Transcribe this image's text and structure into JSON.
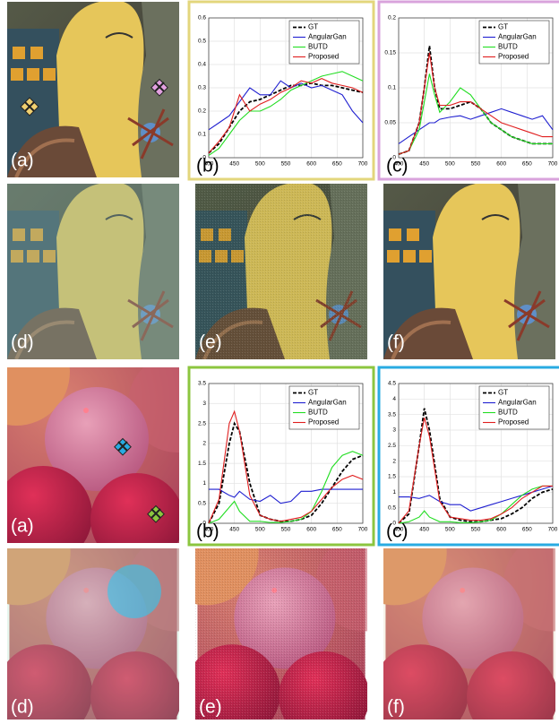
{
  "chart_data": [
    {
      "type": "line",
      "panel_label": "(b)",
      "frame_color": "#e3d67c",
      "grid": true,
      "legend": "upper right",
      "x": [
        400,
        420,
        440,
        460,
        480,
        500,
        520,
        540,
        560,
        580,
        600,
        620,
        640,
        660,
        680,
        700
      ],
      "xlim": [
        400,
        700
      ],
      "xticks": [
        400,
        450,
        500,
        550,
        600,
        650,
        700
      ],
      "ylim": [
        0,
        0.6
      ],
      "yticks": [
        0,
        0.1,
        0.2,
        0.3,
        0.4,
        0.5,
        0.6
      ],
      "series": [
        {
          "name": "GT",
          "color": "#000000",
          "style": "dashed",
          "values": [
            0.02,
            0.06,
            0.13,
            0.2,
            0.24,
            0.25,
            0.27,
            0.29,
            0.31,
            0.31,
            0.32,
            0.31,
            0.31,
            0.3,
            0.29,
            0.28
          ]
        },
        {
          "name": "AngularGan",
          "color": "#1f1fd0",
          "style": "solid",
          "values": [
            0.12,
            0.15,
            0.18,
            0.24,
            0.3,
            0.27,
            0.27,
            0.33,
            0.3,
            0.32,
            0.3,
            0.31,
            0.29,
            0.27,
            0.2,
            0.15
          ]
        },
        {
          "name": "BUTD",
          "color": "#22dd22",
          "style": "solid",
          "values": [
            0.01,
            0.04,
            0.1,
            0.16,
            0.2,
            0.2,
            0.22,
            0.25,
            0.29,
            0.31,
            0.33,
            0.35,
            0.36,
            0.37,
            0.35,
            0.33
          ]
        },
        {
          "name": "Proposed",
          "color": "#e01f1f",
          "style": "solid",
          "values": [
            0.02,
            0.07,
            0.13,
            0.27,
            0.2,
            0.23,
            0.25,
            0.28,
            0.3,
            0.33,
            0.32,
            0.34,
            0.32,
            0.31,
            0.3,
            0.28
          ]
        }
      ]
    },
    {
      "type": "line",
      "panel_label": "(c)",
      "frame_color": "#d9a3dc",
      "grid": true,
      "legend": "upper right",
      "x": [
        400,
        420,
        440,
        450,
        460,
        470,
        480,
        500,
        520,
        540,
        560,
        580,
        600,
        620,
        640,
        660,
        680,
        700
      ],
      "xlim": [
        400,
        700
      ],
      "xticks": [
        400,
        450,
        500,
        550,
        600,
        650,
        700
      ],
      "ylim": [
        0,
        0.2
      ],
      "yticks": [
        0,
        0.05,
        0.1,
        0.15,
        0.2
      ],
      "series": [
        {
          "name": "GT",
          "color": "#000000",
          "style": "dashed",
          "values": [
            0.005,
            0.01,
            0.05,
            0.1,
            0.16,
            0.1,
            0.07,
            0.07,
            0.075,
            0.08,
            0.07,
            0.05,
            0.04,
            0.03,
            0.025,
            0.02,
            0.02,
            0.02
          ]
        },
        {
          "name": "AngularGan",
          "color": "#1f1fd0",
          "style": "solid",
          "values": [
            0.02,
            0.03,
            0.04,
            0.045,
            0.05,
            0.05,
            0.055,
            0.058,
            0.06,
            0.055,
            0.06,
            0.065,
            0.07,
            0.065,
            0.06,
            0.055,
            0.06,
            0.04
          ]
        },
        {
          "name": "BUTD",
          "color": "#22dd22",
          "style": "solid",
          "values": [
            0.005,
            0.01,
            0.04,
            0.08,
            0.12,
            0.09,
            0.065,
            0.08,
            0.1,
            0.09,
            0.07,
            0.05,
            0.04,
            0.03,
            0.025,
            0.02,
            0.02,
            0.02
          ]
        },
        {
          "name": "Proposed",
          "color": "#e01f1f",
          "style": "solid",
          "values": [
            0.005,
            0.01,
            0.05,
            0.1,
            0.15,
            0.1,
            0.075,
            0.075,
            0.08,
            0.08,
            0.07,
            0.06,
            0.05,
            0.045,
            0.04,
            0.035,
            0.03,
            0.03
          ]
        }
      ]
    },
    {
      "type": "line",
      "panel_label": "(b)",
      "frame_color": "#8cc63f",
      "grid": true,
      "legend": "upper right",
      "x": [
        400,
        420,
        440,
        450,
        460,
        480,
        500,
        520,
        540,
        560,
        580,
        600,
        620,
        640,
        660,
        680,
        700
      ],
      "xlim": [
        400,
        700
      ],
      "xticks": [
        400,
        450,
        500,
        550,
        600,
        650,
        700
      ],
      "ylim": [
        0,
        3.5
      ],
      "yticks": [
        0,
        0.5,
        1,
        1.5,
        2,
        2.5,
        3,
        3.5
      ],
      "series": [
        {
          "name": "GT",
          "color": "#000000",
          "style": "dashed",
          "values": [
            0,
            0.5,
            2.0,
            2.5,
            2.3,
            1.0,
            0.2,
            0.1,
            0.05,
            0.05,
            0.1,
            0.2,
            0.5,
            0.9,
            1.3,
            1.6,
            1.7
          ]
        },
        {
          "name": "AngularGan",
          "color": "#1f1fd0",
          "style": "solid",
          "values": [
            0.85,
            0.85,
            0.7,
            0.65,
            0.8,
            0.6,
            0.55,
            0.7,
            0.5,
            0.55,
            0.8,
            0.8,
            0.85,
            0.85,
            0.85,
            0.85,
            0.85
          ]
        },
        {
          "name": "BUTD",
          "color": "#22dd22",
          "style": "solid",
          "values": [
            0,
            0.1,
            0.4,
            0.55,
            0.3,
            0.05,
            0.05,
            0.02,
            0.02,
            0.05,
            0.1,
            0.3,
            0.8,
            1.4,
            1.7,
            1.8,
            1.7
          ]
        },
        {
          "name": "Proposed",
          "color": "#e01f1f",
          "style": "solid",
          "values": [
            0,
            0.6,
            2.5,
            2.8,
            2.3,
            0.7,
            0.2,
            0.1,
            0.05,
            0.1,
            0.15,
            0.3,
            0.6,
            0.9,
            1.1,
            1.2,
            1.1
          ]
        }
      ]
    },
    {
      "type": "line",
      "panel_label": "(c)",
      "frame_color": "#29abe2",
      "grid": true,
      "legend": "upper right",
      "x": [
        400,
        420,
        440,
        450,
        460,
        480,
        500,
        520,
        540,
        560,
        580,
        600,
        620,
        640,
        660,
        680,
        700
      ],
      "xlim": [
        400,
        700
      ],
      "xticks": [
        400,
        450,
        500,
        550,
        600,
        650,
        700
      ],
      "ylim": [
        0,
        4.5
      ],
      "yticks": [
        0,
        0.5,
        1,
        1.5,
        2,
        2.5,
        3,
        3.5,
        4,
        4.5
      ],
      "series": [
        {
          "name": "GT",
          "color": "#000000",
          "style": "dashed",
          "values": [
            0,
            0.3,
            2.5,
            3.7,
            3.0,
            0.8,
            0.2,
            0.1,
            0.05,
            0.05,
            0.1,
            0.15,
            0.3,
            0.5,
            0.8,
            1.0,
            1.1
          ]
        },
        {
          "name": "AngularGan",
          "color": "#1f1fd0",
          "style": "solid",
          "values": [
            0.85,
            0.85,
            0.8,
            0.85,
            0.9,
            0.7,
            0.6,
            0.6,
            0.4,
            0.5,
            0.6,
            0.7,
            0.8,
            0.9,
            1.0,
            1.1,
            1.2
          ]
        },
        {
          "name": "BUTD",
          "color": "#22dd22",
          "style": "solid",
          "values": [
            0,
            0.05,
            0.2,
            0.4,
            0.2,
            0.05,
            0.05,
            0.02,
            0.02,
            0.05,
            0.1,
            0.3,
            0.6,
            0.9,
            1.1,
            1.2,
            1.2
          ]
        },
        {
          "name": "Proposed",
          "color": "#e01f1f",
          "style": "solid",
          "values": [
            0,
            0.4,
            2.5,
            3.4,
            2.8,
            0.7,
            0.2,
            0.15,
            0.1,
            0.1,
            0.15,
            0.3,
            0.5,
            0.8,
            1.0,
            1.2,
            1.2
          ]
        }
      ]
    }
  ],
  "image_labels": [
    "(a)",
    "(d)",
    "(e)",
    "(f)",
    "(a)",
    "(d)",
    "(e)",
    "(f)"
  ]
}
